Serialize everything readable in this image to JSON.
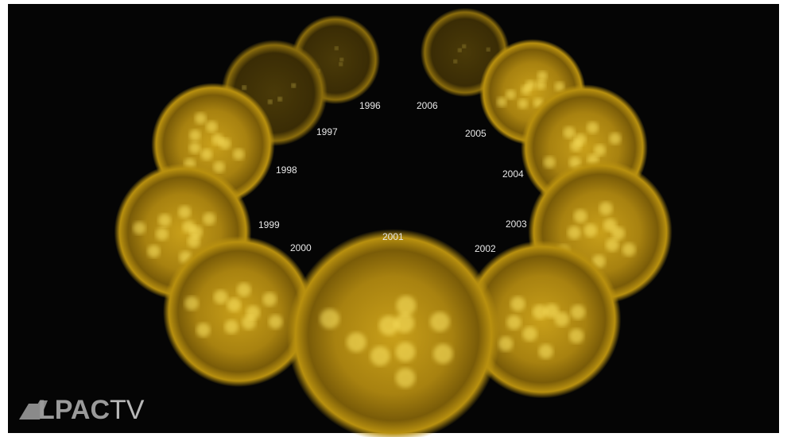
{
  "labels": [
    "1996",
    "1997",
    "1998",
    "1999",
    "2000",
    "2001",
    "2002",
    "2003",
    "2004",
    "2005",
    "2006"
  ],
  "logo": {
    "text": "LPAC",
    "suffix": "TV"
  }
}
